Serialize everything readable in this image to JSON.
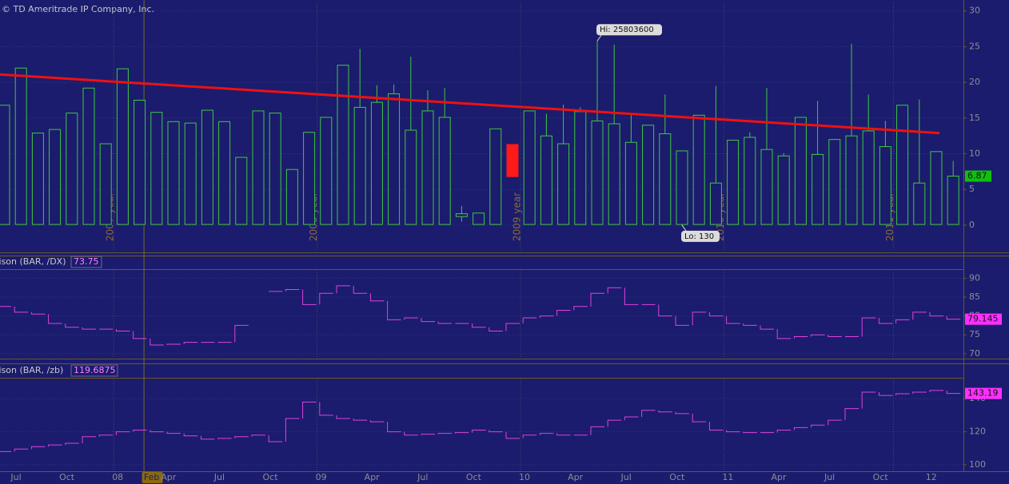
{
  "chart_data": [
    {
      "type": "candlestick",
      "notice": "© TD Ameritrade IP Company, Inc.",
      "color": "#3ec93e",
      "down_color": "#ff1a1a",
      "last_color": "#10c010",
      "open": [
        0.1,
        0.1,
        0.1,
        0.1,
        0.1,
        0.1,
        0.1,
        0.1,
        0.1,
        0.1,
        0.1,
        0.1,
        0.1,
        0.1,
        0.1,
        0.1,
        0.1,
        0.1,
        0.1,
        0.1,
        0.1,
        0.1,
        0.1,
        0.1,
        0.1,
        0.1,
        0.1,
        1.2,
        0.1,
        0.1,
        11.3,
        0.1,
        0.1,
        0.1,
        0.1,
        0.1,
        0.1,
        0.1,
        0.1,
        0.1,
        0.1,
        0.1,
        0.1,
        0.1,
        0.1,
        0.1,
        0.1,
        0.1,
        0.1,
        0.1,
        0.1,
        0.1,
        0.1,
        0.1,
        0.1,
        0.1,
        0.1
      ],
      "high": [
        16.8,
        22,
        12.9,
        13.4,
        15.7,
        19.2,
        11.4,
        21.9,
        17.5,
        15.8,
        14.5,
        14.3,
        16.1,
        14.5,
        9.5,
        16,
        15.7,
        7.8,
        13,
        15.1,
        22.4,
        24.7,
        19.6,
        19.7,
        23.6,
        18.9,
        19.2,
        2.7,
        1.7,
        13.5,
        11.3,
        16,
        15.6,
        16.9,
        16.5,
        25.8036,
        25.3,
        15.6,
        14,
        18.3,
        10.4,
        15.4,
        19.5,
        11.9,
        13,
        19.2,
        10.1,
        15.1,
        17.4,
        12,
        25.4,
        18.3,
        14.6,
        16.8,
        17.6,
        10.3,
        9
      ],
      "low": [
        0.1,
        0.1,
        0.1,
        0.1,
        0.1,
        0.1,
        0.1,
        0.1,
        0.1,
        0.1,
        0.1,
        0.1,
        0.1,
        0.1,
        0.1,
        0.1,
        0.1,
        0.1,
        0.1,
        0.1,
        0.1,
        0.1,
        0.1,
        0.1,
        0.1,
        0.1,
        0.1,
        0.5,
        0.1,
        0.1,
        6.8,
        0.1,
        0.1,
        0.1,
        0.1,
        0.1,
        0.1,
        0.1,
        0.1,
        0.1,
        0.00013,
        0.1,
        0.1,
        0.1,
        0.1,
        0.1,
        0.1,
        0.1,
        0.1,
        0.1,
        0.1,
        0.1,
        0.1,
        0.1,
        0.1,
        0.1,
        0.1
      ],
      "close": [
        16.8,
        22,
        12.9,
        13.4,
        15.7,
        19.2,
        11.4,
        21.9,
        17.5,
        15.8,
        14.5,
        14.3,
        16.1,
        14.5,
        9.5,
        16,
        15.7,
        7.8,
        13,
        15.1,
        22.4,
        16.5,
        17.2,
        18.4,
        13.3,
        16,
        15.1,
        1.6,
        1.7,
        13.5,
        6.8,
        16,
        12.5,
        11.4,
        15.9,
        14.6,
        14.2,
        11.6,
        14,
        12.8,
        10.4,
        15.4,
        5.9,
        11.9,
        12.3,
        10.6,
        9.7,
        15.1,
        9.9,
        12,
        12.5,
        13.2,
        11,
        16.8,
        5.9,
        10.3,
        6.87
      ],
      "period_labels": [
        null,
        null,
        null,
        null,
        null,
        null,
        "2007 year",
        null,
        null,
        null,
        null,
        null,
        null,
        null,
        null,
        null,
        null,
        null,
        "2008 year",
        null,
        null,
        null,
        null,
        null,
        null,
        null,
        null,
        null,
        null,
        null,
        "2009 year",
        null,
        null,
        null,
        null,
        null,
        null,
        null,
        null,
        null,
        null,
        null,
        "2010 year",
        null,
        null,
        null,
        null,
        null,
        null,
        null,
        null,
        null,
        "2011 year",
        null,
        null,
        null,
        null
      ],
      "hi_label": "Hi: 25803600",
      "lo_label": "Lo: 130",
      "trend_line": {
        "start": 21.1,
        "end": 12.9,
        "color": "#ee1111"
      },
      "ylim": [
        -3.7,
        31.2
      ],
      "yticks": [
        0,
        5,
        10,
        15,
        20,
        25,
        30
      ],
      "grid": true
    },
    {
      "type": "step",
      "title": "rison (BAR, /DX)",
      "current": 73.75,
      "color": "#e040e0",
      "last_color": "#ff30ff",
      "values": [
        82.5,
        81,
        80.5,
        78,
        77,
        76.5,
        76.5,
        76,
        74,
        72.3,
        72.5,
        73,
        73,
        73,
        77.5,
        null,
        86.5,
        87,
        83,
        86,
        88,
        86,
        84,
        79,
        79.5,
        78.5,
        78,
        78,
        77,
        76,
        78,
        79.5,
        80,
        81.5,
        82.5,
        86,
        87.5,
        83,
        83,
        80,
        77.5,
        81,
        80,
        78,
        77.5,
        76.5,
        74,
        74.5,
        75,
        74.5,
        74.5,
        79.5,
        78,
        79,
        81,
        80,
        79.145
      ],
      "ylim": [
        68.9,
        92.2
      ],
      "yticks": [
        70,
        75,
        80,
        85,
        90
      ],
      "grid": true
    },
    {
      "type": "step",
      "title": "rison (BAR, /zb)",
      "current": 119.6875,
      "color": "#e040e0",
      "last_color": "#ff30ff",
      "values": [
        108,
        109.5,
        111,
        112,
        113,
        117,
        118,
        120,
        121,
        120,
        119,
        117.5,
        115.5,
        116,
        117,
        118,
        114,
        128,
        138,
        130,
        128,
        127,
        126,
        120,
        118,
        118.5,
        119,
        119.5,
        121,
        120,
        116,
        118,
        119,
        118,
        118,
        123,
        127,
        129,
        133,
        132,
        131,
        126,
        121,
        120,
        119.5,
        119.5,
        121,
        122.5,
        124,
        127,
        134,
        144,
        142,
        143,
        144,
        145,
        143.19
      ],
      "ylim": [
        96.1,
        152.2
      ],
      "yticks": [
        100,
        120,
        140
      ],
      "grid": true,
      "categories": [
        "Jul",
        null,
        null,
        "Oct",
        null,
        null,
        "08",
        null,
        "Feb",
        "Apr",
        null,
        null,
        "Jul",
        null,
        null,
        "Oct",
        null,
        null,
        "09",
        null,
        null,
        "Apr",
        null,
        null,
        "Jul",
        null,
        null,
        "Oct",
        null,
        null,
        "10",
        null,
        null,
        "Apr",
        null,
        null,
        "Jul",
        null,
        null,
        "Oct",
        null,
        null,
        "11",
        null,
        null,
        "Apr",
        null,
        null,
        "Jul",
        null,
        null,
        "Oct",
        null,
        null,
        "12",
        null,
        null
      ],
      "cursor": 8
    }
  ]
}
